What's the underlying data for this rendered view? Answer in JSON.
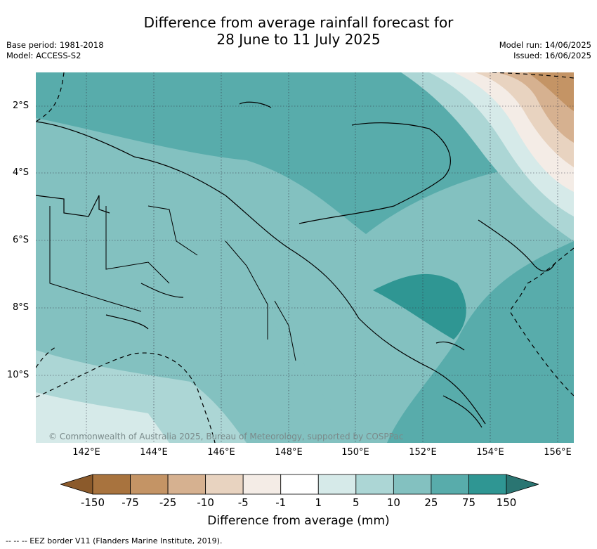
{
  "title": {
    "line1": "Difference from average rainfall forecast for",
    "line2": "28 June to 11 July 2025"
  },
  "meta": {
    "base_period": "Base period: 1981-2018",
    "model": "Model: ACCESS-S2",
    "model_run": "Model run: 14/06/2025",
    "issued": "Issued: 16/06/2025"
  },
  "axes": {
    "lat_labels": [
      "2°S",
      "4°S",
      "6°S",
      "8°S",
      "10°S"
    ],
    "lon_labels": [
      "142°E",
      "144°E",
      "146°E",
      "148°E",
      "150°E",
      "152°E",
      "154°E",
      "156°E"
    ]
  },
  "credit": "© Commonwealth of Australia 2025, Bureau of Meteorology, supported by COSPPac",
  "colorbar": {
    "title": "Difference from average (mm)",
    "ticks": [
      "-150",
      "-75",
      "-25",
      "-10",
      "-5",
      "-1",
      "1",
      "5",
      "10",
      "25",
      "75",
      "150"
    ],
    "colors": [
      "#8b5a2b",
      "#a8733e",
      "#c49465",
      "#d6b190",
      "#e8d3c0",
      "#f4ece6",
      "#ffffff",
      "#d6eae9",
      "#acd6d5",
      "#83c1c0",
      "#58acab",
      "#2f9693",
      "#2a7572"
    ]
  },
  "footnote": "--  --  -- EEZ border V11 (Flanders Marine Institute, 2019)."
}
